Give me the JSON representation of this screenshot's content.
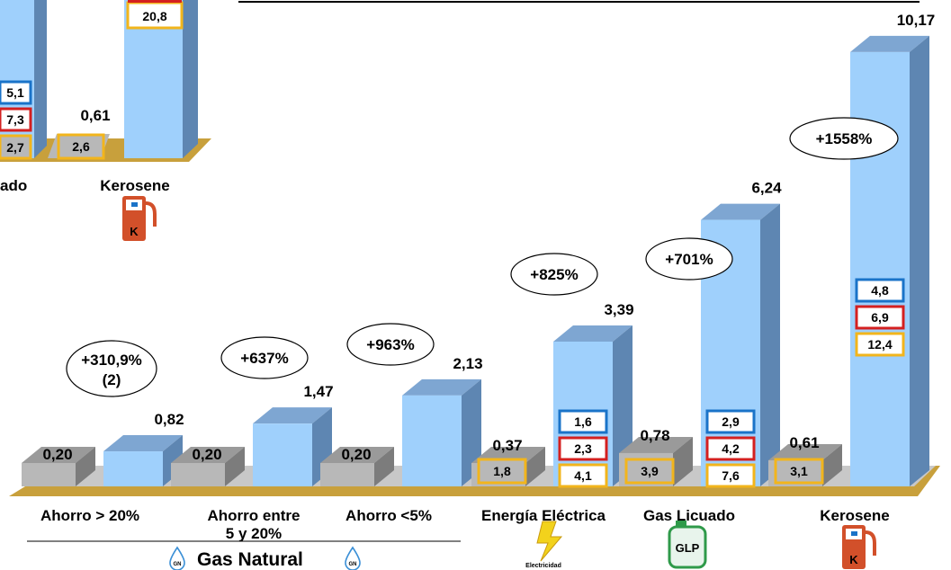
{
  "chart_data": {
    "type": "bar",
    "title": "",
    "xlabel": "",
    "ylabel": "",
    "group_label": "Gas Natural",
    "categories": [
      {
        "id": "ahorro20",
        "label": "Ahorro > 20%",
        "label2": "",
        "low": "0,20",
        "high": "0,82",
        "low_value": 0.2,
        "high_value": 0.82,
        "pct": "+310,9%",
        "pct2": "(2)",
        "low_boxes": [],
        "high_boxes": []
      },
      {
        "id": "ahorro5_20",
        "label": "Ahorro entre",
        "label2": "5 y 20%",
        "low": "0,20",
        "high": "1,47",
        "low_value": 0.2,
        "high_value": 1.47,
        "pct": "+637%",
        "pct2": "",
        "low_boxes": [],
        "high_boxes": []
      },
      {
        "id": "ahorro5",
        "label": "Ahorro <5%",
        "label2": "",
        "low": "0,20",
        "high": "2,13",
        "low_value": 0.2,
        "high_value": 2.13,
        "pct": "+963%",
        "pct2": "",
        "low_boxes": [],
        "high_boxes": []
      },
      {
        "id": "electrica",
        "label": "Energía Eléctrica",
        "label2": "",
        "low": "0,37",
        "high": "3,39",
        "low_value": 0.37,
        "high_value": 3.39,
        "pct": "+825%",
        "pct2": "",
        "low_boxes": [
          "1,8"
        ],
        "high_boxes": [
          "1,6",
          "2,3",
          "4,1"
        ]
      },
      {
        "id": "glp",
        "label": "Gas Licuado",
        "label2": "",
        "low": "0,78",
        "high": "6,24",
        "low_value": 0.78,
        "high_value": 6.24,
        "pct": "+701%",
        "pct2": "",
        "low_boxes": [
          "3,9"
        ],
        "high_boxes": [
          "2,9",
          "4,2",
          "7,6"
        ]
      },
      {
        "id": "kerosene",
        "label": "Kerosene",
        "label2": "",
        "low": "0,61",
        "high": "10,17",
        "low_value": 0.61,
        "high_value": 10.17,
        "pct": "+1558%",
        "pct2": "",
        "low_boxes": [
          "3,1"
        ],
        "high_boxes": [
          "4,8",
          "6,9",
          "12,4"
        ]
      }
    ],
    "box_colors": [
      "#1a73c8",
      "#d42020",
      "#f2b51c"
    ],
    "background_panel": {
      "labels": [
        "ado",
        "Kerosene"
      ],
      "low": "0,61",
      "boxes_left": [
        "5,1",
        "7,3",
        "2,7"
      ],
      "box_low": "2,6",
      "box_top": "20,8"
    }
  },
  "colors": {
    "bar_front": "#9fd0fc",
    "bar_side": "#5e86b2",
    "bar_top": "#7ea6d2",
    "low_front": "#b8b8b8",
    "low_side": "#7c7c7c",
    "low_top": "#9a9a9a",
    "floor": "#c8a03c",
    "floor_shadow": "#a07d22"
  },
  "icons": {
    "gas": "gas-drop-icon",
    "gas_badge": "GN",
    "electric": "lightning-icon",
    "electric_caption": "Electricidad",
    "glp": "gas-cylinder-icon",
    "glp_badge": "GLP",
    "kerosene": "fuel-pump-icon",
    "kerosene_badge": "K"
  }
}
